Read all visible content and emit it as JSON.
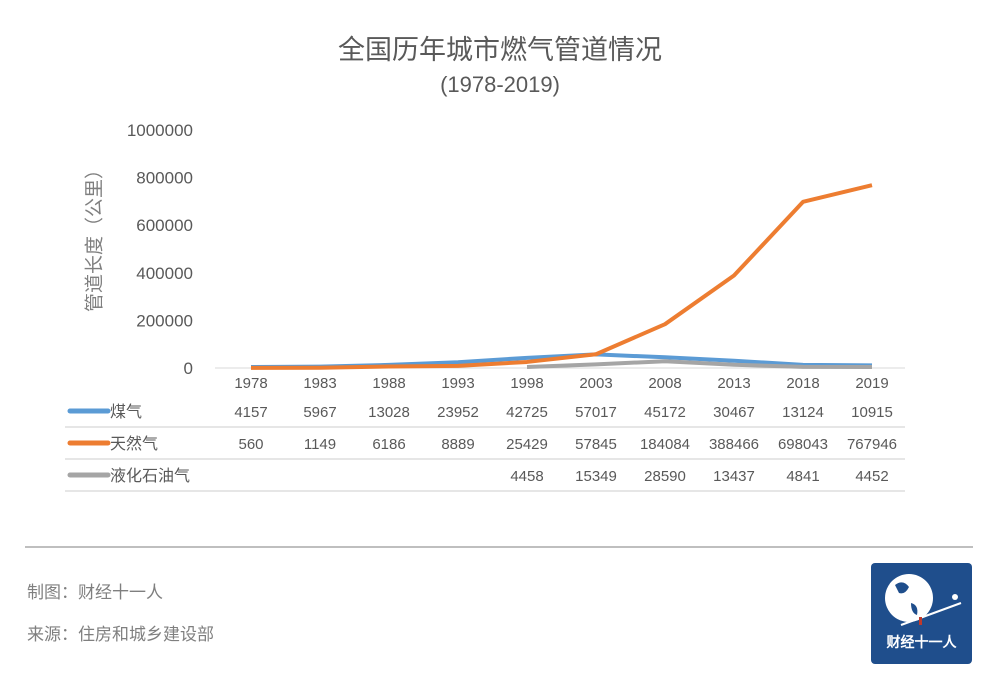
{
  "chart_data": {
    "type": "line",
    "title": "全国历年城市燃气管道情况",
    "subtitle": "(1978-2019)",
    "ylabel": "管道长度（公里）",
    "xlabel": "",
    "ylim": [
      0,
      1000000
    ],
    "yticks": [
      "0",
      "200000",
      "400000",
      "600000",
      "800000",
      "1000000"
    ],
    "categories": [
      "1978",
      "1983",
      "1988",
      "1993",
      "1998",
      "2003",
      "2008",
      "2013",
      "2018",
      "2019"
    ],
    "legend": "data-table",
    "series": [
      {
        "name": "煤气",
        "color": "#5b9bd5",
        "values": [
          4157,
          5967,
          13028,
          23952,
          42725,
          57017,
          45172,
          30467,
          13124,
          10915
        ]
      },
      {
        "name": "天然气",
        "color": "#ed7d31",
        "values": [
          560,
          1149,
          6186,
          8889,
          25429,
          57845,
          184084,
          388466,
          698043,
          767946
        ]
      },
      {
        "name": "液化石油气",
        "color": "#a5a5a5",
        "values": [
          null,
          null,
          null,
          null,
          4458,
          15349,
          28590,
          13437,
          4841,
          4452
        ]
      }
    ]
  },
  "footer": {
    "credit": "制图：财经十一人",
    "source": "来源：住房和城乡建设部",
    "logo_text": "财经十一人"
  }
}
